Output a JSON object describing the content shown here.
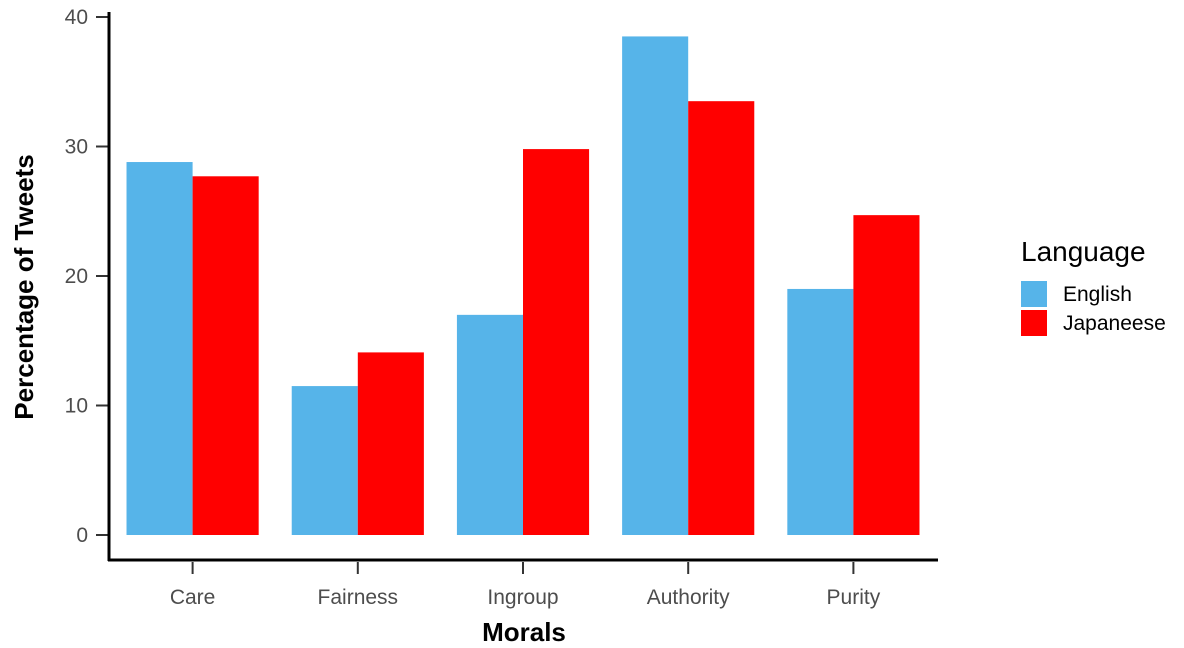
{
  "chart_data": {
    "type": "bar",
    "categories": [
      "Care",
      "Fairness",
      "Ingroup",
      "Authority",
      "Purity"
    ],
    "series": [
      {
        "name": "English",
        "color": "#56b4e9",
        "values": [
          28.8,
          11.5,
          17.0,
          38.5,
          19.0
        ]
      },
      {
        "name": "Japaneese",
        "color": "#ff0000",
        "values": [
          27.7,
          14.1,
          29.8,
          33.5,
          24.7
        ]
      }
    ],
    "title": "",
    "xlabel": "Morals",
    "ylabel": "Percentage of Tweets",
    "ylim": [
      0,
      40
    ],
    "yticks": [
      0,
      10,
      20,
      30,
      40
    ],
    "grid": false,
    "legend": {
      "title": "Language",
      "placement": "right"
    }
  }
}
